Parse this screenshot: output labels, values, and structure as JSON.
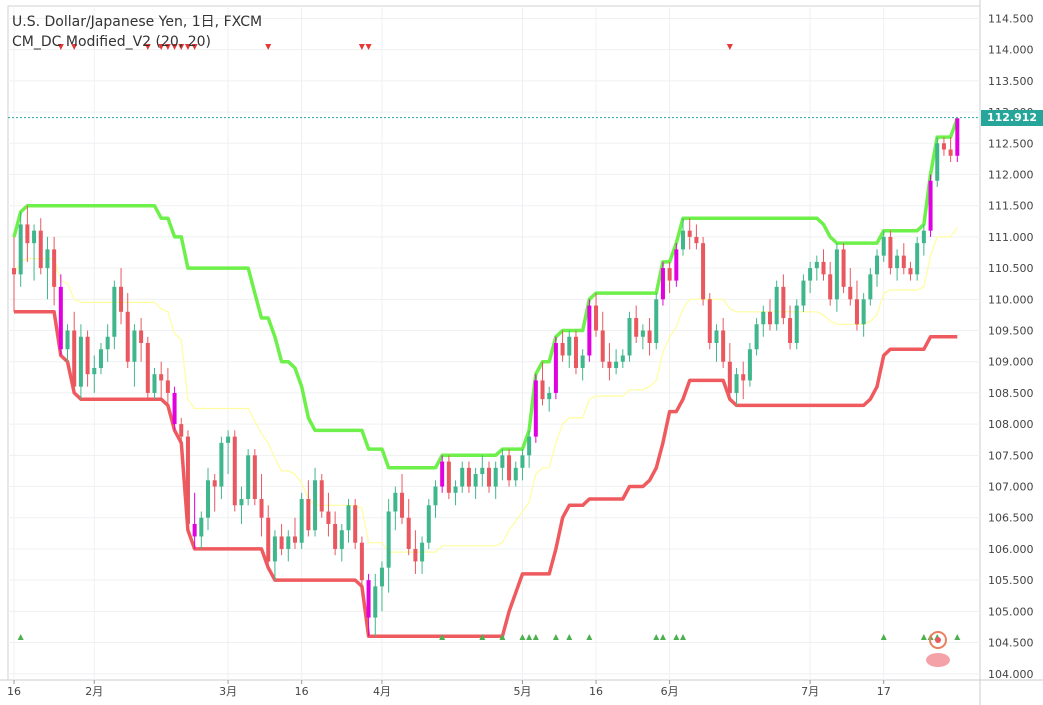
{
  "chart_data": {
    "type": "candlestick",
    "title": "U.S. Dollar/Japanese Yen, 1日, FXCM",
    "indicator": "CM_DC Modified_V2 (20, 20)",
    "ylim": [
      103.9,
      114.7
    ],
    "y_ticks": [
      "104.000",
      "104.500",
      "105.000",
      "105.500",
      "106.000",
      "106.500",
      "107.000",
      "107.500",
      "108.000",
      "108.500",
      "109.000",
      "109.500",
      "110.000",
      "110.500",
      "111.000",
      "111.500",
      "112.000",
      "112.500",
      "113.000",
      "113.500",
      "114.000",
      "114.500"
    ],
    "x_ticks": [
      {
        "label": "16",
        "i": 0
      },
      {
        "label": "2月",
        "i": 12
      },
      {
        "label": "3月",
        "i": 32
      },
      {
        "label": "16",
        "i": 43
      },
      {
        "label": "4月",
        "i": 55
      },
      {
        "label": "5月",
        "i": 76
      },
      {
        "label": "16",
        "i": 87
      },
      {
        "label": "6月",
        "i": 98
      },
      {
        "label": "7月",
        "i": 119
      },
      {
        "label": "17",
        "i": 130
      }
    ],
    "last_price": "112.912",
    "last_price_color": "#26a69a",
    "colors": {
      "up": "#3fb68b",
      "down": "#e9575f",
      "breakout": "#e000e0",
      "upper": "#6ef04a",
      "lower": "#ef5a5f",
      "mid": "#fffd9e",
      "sell_marker": "#e53935",
      "buy_marker": "#4caf50"
    },
    "candles": [
      {
        "o": 110.5,
        "h": 111.0,
        "l": 109.8,
        "c": 110.4
      },
      {
        "o": 110.4,
        "h": 111.4,
        "l": 110.2,
        "c": 111.2
      },
      {
        "o": 111.2,
        "h": 111.5,
        "l": 110.6,
        "c": 110.9
      },
      {
        "o": 110.9,
        "h": 111.2,
        "l": 110.3,
        "c": 111.1
      },
      {
        "o": 111.1,
        "h": 111.3,
        "l": 110.4,
        "c": 110.5
      },
      {
        "o": 110.5,
        "h": 111.0,
        "l": 110.0,
        "c": 110.8
      },
      {
        "o": 110.8,
        "h": 111.0,
        "l": 109.9,
        "c": 110.2
      },
      {
        "o": 110.2,
        "h": 110.4,
        "l": 109.1,
        "c": 109.2,
        "bk": 1
      },
      {
        "o": 109.2,
        "h": 109.6,
        "l": 109.0,
        "c": 109.5
      },
      {
        "o": 109.5,
        "h": 109.8,
        "l": 108.5,
        "c": 108.6
      },
      {
        "o": 108.6,
        "h": 109.6,
        "l": 108.4,
        "c": 109.4
      },
      {
        "o": 109.4,
        "h": 109.5,
        "l": 108.6,
        "c": 108.8
      },
      {
        "o": 108.8,
        "h": 109.1,
        "l": 108.5,
        "c": 108.9
      },
      {
        "o": 108.9,
        "h": 109.3,
        "l": 108.8,
        "c": 109.2
      },
      {
        "o": 109.2,
        "h": 109.6,
        "l": 109.0,
        "c": 109.4
      },
      {
        "o": 109.4,
        "h": 110.3,
        "l": 109.2,
        "c": 110.2
      },
      {
        "o": 110.2,
        "h": 110.5,
        "l": 109.6,
        "c": 109.8
      },
      {
        "o": 109.8,
        "h": 110.1,
        "l": 108.9,
        "c": 109.0
      },
      {
        "o": 109.0,
        "h": 109.6,
        "l": 108.6,
        "c": 109.5
      },
      {
        "o": 109.5,
        "h": 109.7,
        "l": 109.0,
        "c": 109.3
      },
      {
        "o": 109.3,
        "h": 109.4,
        "l": 108.4,
        "c": 108.5
      },
      {
        "o": 108.5,
        "h": 108.9,
        "l": 108.4,
        "c": 108.8
      },
      {
        "o": 108.8,
        "h": 109.0,
        "l": 108.4,
        "c": 108.7
      },
      {
        "o": 108.7,
        "h": 108.9,
        "l": 108.3,
        "c": 108.5
      },
      {
        "o": 108.5,
        "h": 108.6,
        "l": 107.9,
        "c": 108.0,
        "bk": 1
      },
      {
        "o": 108.0,
        "h": 108.1,
        "l": 107.7,
        "c": 107.8
      },
      {
        "o": 107.8,
        "h": 107.9,
        "l": 106.3,
        "c": 106.4
      },
      {
        "o": 106.4,
        "h": 106.9,
        "l": 106.0,
        "c": 106.2,
        "bk": 1
      },
      {
        "o": 106.2,
        "h": 106.6,
        "l": 106.0,
        "c": 106.5
      },
      {
        "o": 106.5,
        "h": 107.3,
        "l": 106.3,
        "c": 107.1
      },
      {
        "o": 107.1,
        "h": 107.2,
        "l": 106.6,
        "c": 107.0
      },
      {
        "o": 107.0,
        "h": 107.8,
        "l": 106.8,
        "c": 107.7
      },
      {
        "o": 107.7,
        "h": 107.9,
        "l": 107.2,
        "c": 107.8
      },
      {
        "o": 107.8,
        "h": 107.9,
        "l": 106.6,
        "c": 106.7
      },
      {
        "o": 106.7,
        "h": 107.0,
        "l": 106.4,
        "c": 106.8
      },
      {
        "o": 106.8,
        "h": 107.6,
        "l": 106.7,
        "c": 107.5
      },
      {
        "o": 107.5,
        "h": 107.6,
        "l": 106.7,
        "c": 106.8
      },
      {
        "o": 106.8,
        "h": 107.2,
        "l": 106.2,
        "c": 106.5
      },
      {
        "o": 106.5,
        "h": 106.7,
        "l": 105.7,
        "c": 105.8
      },
      {
        "o": 105.8,
        "h": 106.3,
        "l": 105.5,
        "c": 106.2
      },
      {
        "o": 106.2,
        "h": 106.4,
        "l": 105.9,
        "c": 106.0
      },
      {
        "o": 106.0,
        "h": 106.3,
        "l": 105.8,
        "c": 106.2
      },
      {
        "o": 106.2,
        "h": 106.5,
        "l": 106.0,
        "c": 106.1
      },
      {
        "o": 106.1,
        "h": 106.9,
        "l": 106.0,
        "c": 106.8
      },
      {
        "o": 106.8,
        "h": 107.1,
        "l": 106.2,
        "c": 106.3
      },
      {
        "o": 106.3,
        "h": 107.3,
        "l": 106.2,
        "c": 107.1
      },
      {
        "o": 107.1,
        "h": 107.2,
        "l": 106.5,
        "c": 106.6
      },
      {
        "o": 106.6,
        "h": 106.9,
        "l": 106.2,
        "c": 106.4
      },
      {
        "o": 106.4,
        "h": 106.6,
        "l": 105.9,
        "c": 106.0
      },
      {
        "o": 106.0,
        "h": 106.4,
        "l": 105.8,
        "c": 106.3
      },
      {
        "o": 106.3,
        "h": 106.8,
        "l": 106.1,
        "c": 106.7
      },
      {
        "o": 106.7,
        "h": 106.8,
        "l": 106.0,
        "c": 106.1
      },
      {
        "o": 106.1,
        "h": 106.2,
        "l": 105.4,
        "c": 105.5
      },
      {
        "o": 105.5,
        "h": 105.6,
        "l": 104.6,
        "c": 104.9,
        "bk": 1
      },
      {
        "o": 104.9,
        "h": 105.6,
        "l": 104.6,
        "c": 105.4
      },
      {
        "o": 105.4,
        "h": 105.8,
        "l": 105.0,
        "c": 105.7
      },
      {
        "o": 105.7,
        "h": 106.8,
        "l": 105.3,
        "c": 106.6
      },
      {
        "o": 106.6,
        "h": 107.0,
        "l": 106.3,
        "c": 106.9
      },
      {
        "o": 106.9,
        "h": 107.2,
        "l": 106.4,
        "c": 106.5
      },
      {
        "o": 106.5,
        "h": 106.8,
        "l": 105.9,
        "c": 106.0
      },
      {
        "o": 106.0,
        "h": 106.3,
        "l": 105.6,
        "c": 105.8
      },
      {
        "o": 105.8,
        "h": 106.2,
        "l": 105.6,
        "c": 106.1
      },
      {
        "o": 106.1,
        "h": 106.8,
        "l": 106.0,
        "c": 106.7
      },
      {
        "o": 106.7,
        "h": 107.1,
        "l": 106.5,
        "c": 107.0
      },
      {
        "o": 107.0,
        "h": 107.5,
        "l": 106.9,
        "c": 107.4,
        "bk": 1
      },
      {
        "o": 107.4,
        "h": 107.5,
        "l": 106.8,
        "c": 106.9
      },
      {
        "o": 106.9,
        "h": 107.1,
        "l": 106.7,
        "c": 107.0
      },
      {
        "o": 107.0,
        "h": 107.4,
        "l": 106.9,
        "c": 107.3
      },
      {
        "o": 107.3,
        "h": 107.4,
        "l": 106.9,
        "c": 107.0
      },
      {
        "o": 107.0,
        "h": 107.3,
        "l": 106.8,
        "c": 107.2
      },
      {
        "o": 107.2,
        "h": 107.5,
        "l": 107.0,
        "c": 107.3
      },
      {
        "o": 107.3,
        "h": 107.4,
        "l": 106.9,
        "c": 107.0
      },
      {
        "o": 107.0,
        "h": 107.4,
        "l": 106.8,
        "c": 107.3
      },
      {
        "o": 107.3,
        "h": 107.6,
        "l": 107.1,
        "c": 107.5
      },
      {
        "o": 107.5,
        "h": 107.6,
        "l": 107.0,
        "c": 107.1
      },
      {
        "o": 107.1,
        "h": 107.4,
        "l": 107.0,
        "c": 107.3
      },
      {
        "o": 107.3,
        "h": 107.6,
        "l": 107.1,
        "c": 107.5
      },
      {
        "o": 107.5,
        "h": 107.9,
        "l": 107.3,
        "c": 107.8
      },
      {
        "o": 107.8,
        "h": 108.8,
        "l": 107.7,
        "c": 108.7,
        "bk": 1
      },
      {
        "o": 108.7,
        "h": 109.0,
        "l": 108.3,
        "c": 108.4
      },
      {
        "o": 108.4,
        "h": 108.6,
        "l": 108.2,
        "c": 108.5
      },
      {
        "o": 108.5,
        "h": 109.4,
        "l": 108.4,
        "c": 109.3,
        "bk": 1
      },
      {
        "o": 109.3,
        "h": 109.5,
        "l": 109.0,
        "c": 109.1
      },
      {
        "o": 109.1,
        "h": 109.5,
        "l": 108.9,
        "c": 109.4
      },
      {
        "o": 109.4,
        "h": 109.5,
        "l": 108.8,
        "c": 108.9
      },
      {
        "o": 108.9,
        "h": 109.2,
        "l": 108.7,
        "c": 109.1
      },
      {
        "o": 109.1,
        "h": 110.0,
        "l": 109.0,
        "c": 109.9,
        "bk": 1
      },
      {
        "o": 109.9,
        "h": 110.1,
        "l": 109.4,
        "c": 109.5
      },
      {
        "o": 109.5,
        "h": 109.8,
        "l": 108.9,
        "c": 109.0
      },
      {
        "o": 109.0,
        "h": 109.3,
        "l": 108.7,
        "c": 108.9
      },
      {
        "o": 108.9,
        "h": 109.2,
        "l": 108.8,
        "c": 109.0
      },
      {
        "o": 109.0,
        "h": 109.2,
        "l": 108.9,
        "c": 109.1
      },
      {
        "o": 109.1,
        "h": 109.8,
        "l": 109.0,
        "c": 109.7
      },
      {
        "o": 109.7,
        "h": 109.9,
        "l": 109.3,
        "c": 109.4
      },
      {
        "o": 109.4,
        "h": 109.6,
        "l": 109.2,
        "c": 109.5
      },
      {
        "o": 109.5,
        "h": 109.7,
        "l": 109.1,
        "c": 109.3
      },
      {
        "o": 109.3,
        "h": 110.1,
        "l": 109.2,
        "c": 110.0
      },
      {
        "o": 110.0,
        "h": 110.6,
        "l": 109.9,
        "c": 110.5,
        "bk": 1
      },
      {
        "o": 110.5,
        "h": 110.6,
        "l": 110.1,
        "c": 110.3
      },
      {
        "o": 110.3,
        "h": 110.9,
        "l": 110.2,
        "c": 110.8,
        "bk": 1
      },
      {
        "o": 110.8,
        "h": 111.3,
        "l": 110.7,
        "c": 111.1
      },
      {
        "o": 111.1,
        "h": 111.3,
        "l": 110.8,
        "c": 111.0
      },
      {
        "o": 111.0,
        "h": 111.2,
        "l": 110.8,
        "c": 110.9
      },
      {
        "o": 110.9,
        "h": 111.0,
        "l": 109.9,
        "c": 110.0
      },
      {
        "o": 110.0,
        "h": 110.1,
        "l": 109.2,
        "c": 109.3
      },
      {
        "o": 109.3,
        "h": 109.6,
        "l": 109.0,
        "c": 109.5
      },
      {
        "o": 109.5,
        "h": 109.7,
        "l": 108.9,
        "c": 109.0
      },
      {
        "o": 109.0,
        "h": 109.3,
        "l": 108.4,
        "c": 108.5
      },
      {
        "o": 108.5,
        "h": 108.9,
        "l": 108.3,
        "c": 108.8
      },
      {
        "o": 108.8,
        "h": 109.0,
        "l": 108.4,
        "c": 108.7
      },
      {
        "o": 108.7,
        "h": 109.3,
        "l": 108.6,
        "c": 109.2
      },
      {
        "o": 109.2,
        "h": 109.7,
        "l": 109.1,
        "c": 109.6
      },
      {
        "o": 109.6,
        "h": 109.9,
        "l": 109.4,
        "c": 109.8
      },
      {
        "o": 109.8,
        "h": 110.0,
        "l": 109.5,
        "c": 109.6
      },
      {
        "o": 109.6,
        "h": 110.3,
        "l": 109.5,
        "c": 110.2
      },
      {
        "o": 110.2,
        "h": 110.4,
        "l": 109.6,
        "c": 109.7
      },
      {
        "o": 109.7,
        "h": 109.9,
        "l": 109.2,
        "c": 109.3
      },
      {
        "o": 109.3,
        "h": 110.0,
        "l": 109.2,
        "c": 109.9
      },
      {
        "o": 109.9,
        "h": 110.4,
        "l": 109.8,
        "c": 110.3
      },
      {
        "o": 110.3,
        "h": 110.6,
        "l": 110.1,
        "c": 110.5
      },
      {
        "o": 110.5,
        "h": 110.7,
        "l": 110.3,
        "c": 110.6
      },
      {
        "o": 110.6,
        "h": 110.8,
        "l": 110.3,
        "c": 110.4
      },
      {
        "o": 110.4,
        "h": 110.6,
        "l": 109.9,
        "c": 110.0
      },
      {
        "o": 110.0,
        "h": 110.9,
        "l": 109.8,
        "c": 110.8
      },
      {
        "o": 110.8,
        "h": 110.9,
        "l": 110.1,
        "c": 110.2
      },
      {
        "o": 110.2,
        "h": 110.5,
        "l": 109.9,
        "c": 110.0
      },
      {
        "o": 110.0,
        "h": 110.3,
        "l": 109.5,
        "c": 109.6
      },
      {
        "o": 109.6,
        "h": 110.1,
        "l": 109.4,
        "c": 110.0
      },
      {
        "o": 110.0,
        "h": 110.5,
        "l": 109.9,
        "c": 110.4
      },
      {
        "o": 110.4,
        "h": 110.8,
        "l": 110.2,
        "c": 110.7
      },
      {
        "o": 110.7,
        "h": 111.1,
        "l": 110.6,
        "c": 111.0
      },
      {
        "o": 111.0,
        "h": 111.1,
        "l": 110.4,
        "c": 110.5
      },
      {
        "o": 110.5,
        "h": 110.8,
        "l": 110.3,
        "c": 110.7
      },
      {
        "o": 110.7,
        "h": 110.9,
        "l": 110.4,
        "c": 110.5
      },
      {
        "o": 110.5,
        "h": 110.6,
        "l": 110.3,
        "c": 110.4
      },
      {
        "o": 110.4,
        "h": 111.0,
        "l": 110.3,
        "c": 110.9
      },
      {
        "o": 110.9,
        "h": 111.2,
        "l": 110.7,
        "c": 111.1
      },
      {
        "o": 111.1,
        "h": 112.0,
        "l": 111.0,
        "c": 111.9,
        "bk": 1
      },
      {
        "o": 111.9,
        "h": 112.6,
        "l": 111.8,
        "c": 112.5
      },
      {
        "o": 112.5,
        "h": 112.6,
        "l": 112.3,
        "c": 112.4
      },
      {
        "o": 112.4,
        "h": 112.6,
        "l": 112.2,
        "c": 112.3
      },
      {
        "o": 112.3,
        "h": 112.9,
        "l": 112.2,
        "c": 112.9,
        "bk": 1
      }
    ]
  }
}
